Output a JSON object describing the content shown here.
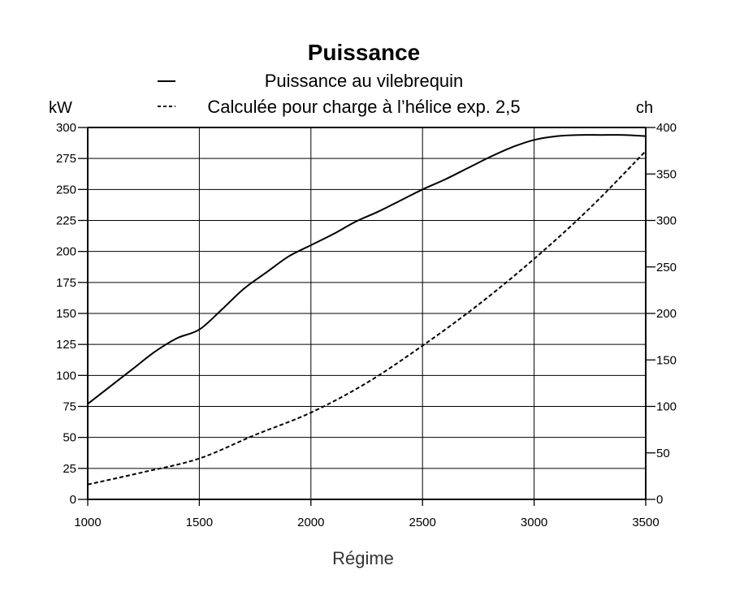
{
  "chart_data": {
    "type": "line",
    "title": "Puissance",
    "xlabel": "Régime",
    "ylabel_left": "kW",
    "ylabel_right": "ch",
    "xlim": [
      1000,
      3500
    ],
    "ylim": [
      0,
      300
    ],
    "ylim_right": [
      0,
      400
    ],
    "x_ticks": [
      1000,
      1500,
      2000,
      2500,
      3000,
      3500
    ],
    "y_ticks_left": [
      0,
      25,
      50,
      75,
      100,
      125,
      150,
      175,
      200,
      225,
      250,
      275,
      300
    ],
    "y_ticks_right": [
      0,
      50,
      100,
      150,
      200,
      250,
      300,
      350,
      400
    ],
    "grid": true,
    "legend_position": "top-center",
    "series": [
      {
        "name": "Puissance au vilebrequin",
        "style": "solid",
        "x": [
          1000,
          1100,
          1200,
          1300,
          1400,
          1500,
          1600,
          1700,
          1800,
          1900,
          2000,
          2100,
          2200,
          2300,
          2400,
          2500,
          2600,
          2700,
          2800,
          2900,
          3000,
          3100,
          3200,
          3300,
          3400,
          3500
        ],
        "y": [
          77,
          91,
          105,
          119,
          130,
          137,
          153,
          170,
          183,
          196,
          205,
          214,
          224,
          232,
          241,
          250,
          258,
          267,
          276,
          284,
          290,
          293,
          294,
          294,
          294,
          293
        ]
      },
      {
        "name": "Calculée pour charge à l’hélice exp. 2,5",
        "style": "dashed",
        "x": [
          1000,
          1250,
          1500,
          1750,
          2000,
          2250,
          2500,
          2750,
          3000,
          3250,
          3500
        ],
        "y": [
          12,
          22,
          33,
          52,
          70,
          94,
          124,
          157,
          194,
          235,
          281
        ]
      }
    ]
  }
}
